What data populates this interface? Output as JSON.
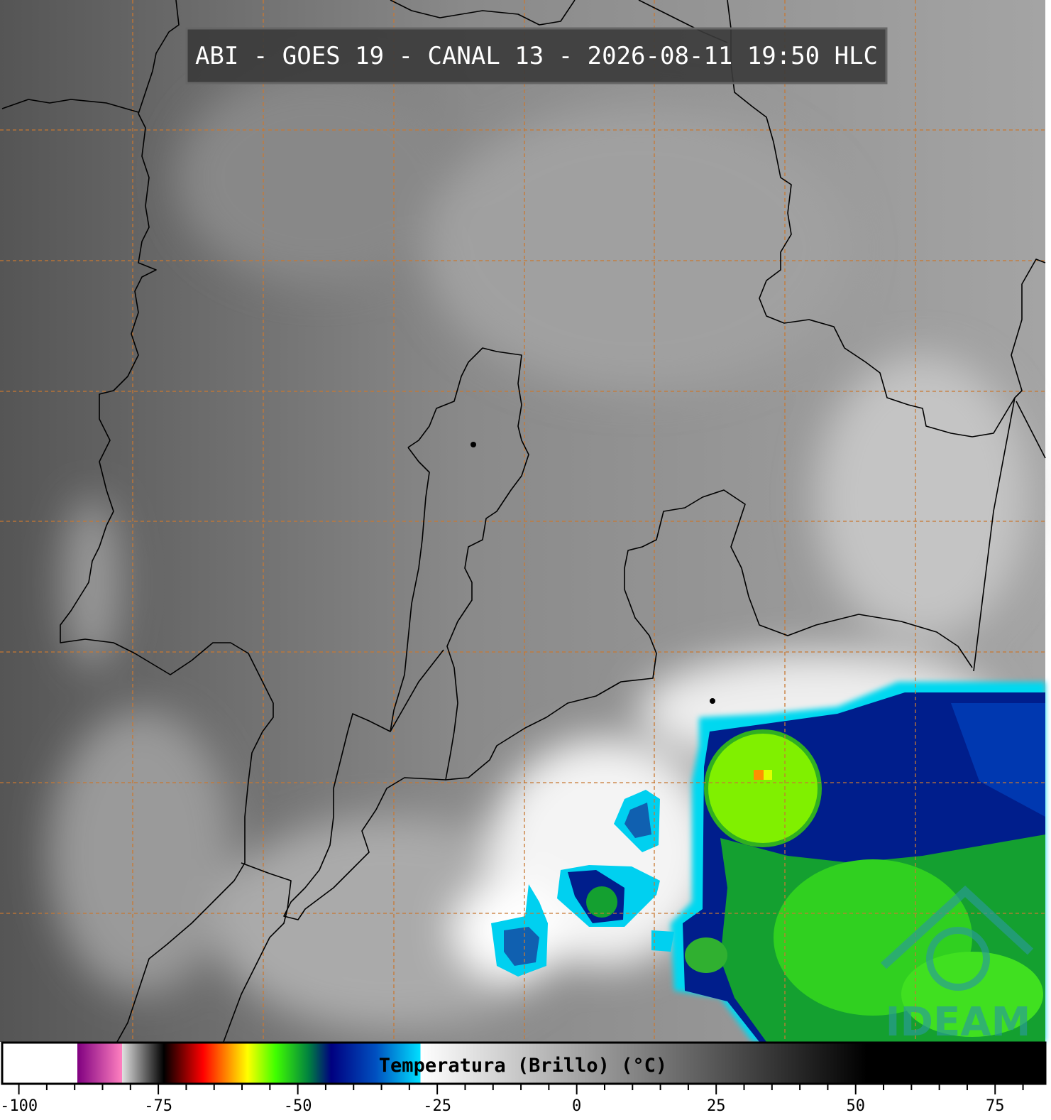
{
  "title": "ABI - GOES 19 - CANAL 13 - 2026-08-11 19:50 HLC",
  "watermark": "IDEAM",
  "colorbar": {
    "label": "Temperatura (Brillo) (°C)",
    "xlim": [
      -103,
      84
    ],
    "xticks": [
      -100,
      -75,
      -50,
      -25,
      0,
      25,
      50,
      75
    ],
    "minor_xticks": [
      -95,
      -90,
      -85,
      -80,
      -70,
      -65,
      -60,
      -55,
      -45,
      -40,
      -35,
      -30,
      -20,
      -15,
      -10,
      -5,
      5,
      10,
      15,
      20,
      30,
      35,
      40,
      45,
      55,
      60,
      65,
      70,
      80
    ],
    "colormap": [
      {
        "value": -103,
        "color": "#ffffff"
      },
      {
        "value": -89.5,
        "color": "#ffffff"
      },
      {
        "value": -89.5,
        "color": "#800080"
      },
      {
        "value": -81.5,
        "color": "#ff80c0"
      },
      {
        "value": -81.5,
        "color": "#e0e0e0"
      },
      {
        "value": -74,
        "color": "#000000"
      },
      {
        "value": -67,
        "color": "#ff0000"
      },
      {
        "value": -63,
        "color": "#ff8000"
      },
      {
        "value": -59,
        "color": "#ffff00"
      },
      {
        "value": -54,
        "color": "#40ff00"
      },
      {
        "value": -48,
        "color": "#008040"
      },
      {
        "value": -44,
        "color": "#000080"
      },
      {
        "value": -36,
        "color": "#0050c0"
      },
      {
        "value": -28,
        "color": "#00e0ff"
      },
      {
        "value": -28,
        "color": "#ffffff"
      },
      {
        "value": 52,
        "color": "#000000"
      },
      {
        "value": 84,
        "color": "#000000"
      }
    ]
  }
}
